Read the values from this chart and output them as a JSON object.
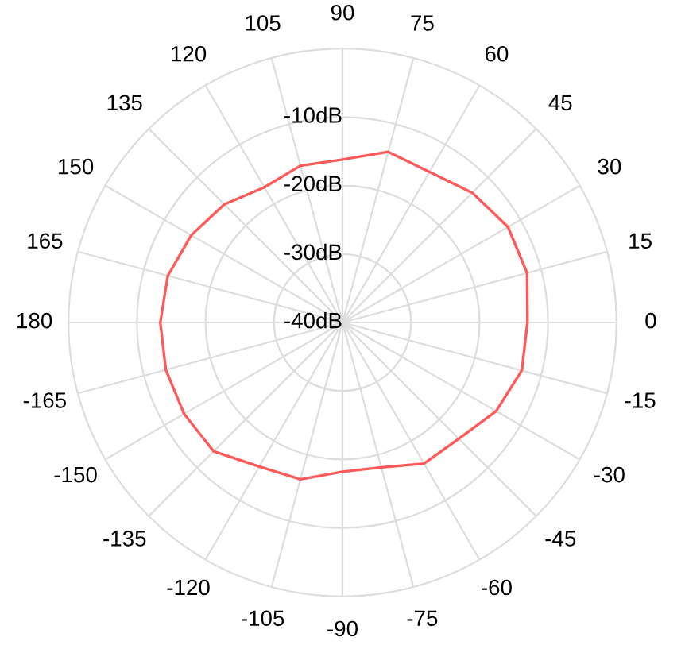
{
  "chart_data": {
    "type": "radar",
    "categories": [
      "90",
      "75",
      "60",
      "45",
      "30",
      "15",
      "0",
      "-15",
      "-30",
      "-45",
      "-60",
      "-75",
      "-90",
      "-105",
      "-120",
      "-135",
      "-150",
      "-165",
      "180",
      "165",
      "150",
      "135",
      "120",
      "105"
    ],
    "series": [
      {
        "color": "#ff5a5a",
        "values": [
          -16.2,
          -14.2,
          -14.6,
          -13.2,
          -12.1,
          -12.1,
          -13.0,
          -12.9,
          -14.1,
          -16.0,
          -16.2,
          -18.1,
          -18.2,
          -16.3,
          -15.7,
          -13.4,
          -13.3,
          -13.3,
          -13.4,
          -13.6,
          -14.5,
          -15.6,
          -17.2,
          -16.3
        ]
      }
    ],
    "ylim": [
      -40,
      0
    ],
    "yticks": [
      {
        "value": -40,
        "label": "-40dB"
      },
      {
        "value": -30,
        "label": "-30dB"
      },
      {
        "value": -20,
        "label": "-20dB"
      },
      {
        "value": -10,
        "label": "-10dB"
      }
    ],
    "grid": true,
    "marker": "none",
    "line_style": "solid"
  }
}
